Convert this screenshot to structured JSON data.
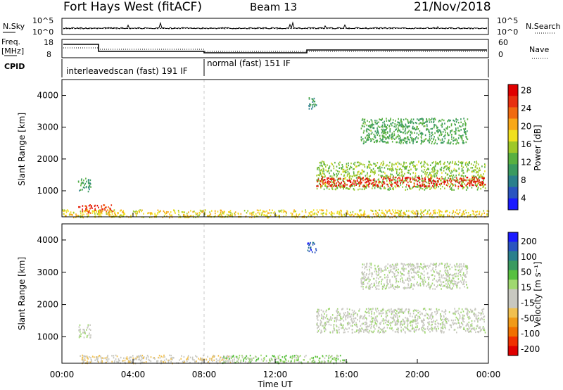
{
  "header": {
    "station": "Fort Hays West (fitACF)",
    "beam": "Beam 13",
    "date": "21/Nov/2018"
  },
  "top_panels": {
    "nsky_label": "N.Sky",
    "nsky_ticks": [
      "10^5",
      "10^0"
    ],
    "nsearch_label": "N.Search",
    "nsearch_ticks": [
      "10^5",
      "10^0"
    ],
    "freq_label_line1": "Freq.",
    "freq_label_line2": "[MHz]",
    "freq_ticks": [
      "18",
      "8"
    ],
    "nave_label": "Nave",
    "nave_ticks": [
      "60",
      "0"
    ],
    "cpid_label": "CPID",
    "cpid_segments": [
      "interleavedscan (fast) 191 IF",
      "normal (fast) 151 IF"
    ]
  },
  "chart_data": [
    {
      "type": "heatmap",
      "panel": "power",
      "ylabel": "Slant Range [km]",
      "yticks": [
        "4000",
        "3000",
        "2000",
        "1000"
      ],
      "ylim": [
        180,
        4500
      ],
      "xlim_hours": [
        0,
        24
      ],
      "colorbar": {
        "label": "Power [dB]",
        "ticks": [
          "28",
          "24",
          "20",
          "16",
          "12",
          "8",
          "4"
        ],
        "range": [
          0,
          30
        ],
        "colors": [
          "#1a1aff",
          "#2a54c0",
          "#2a7f8c",
          "#3a9a60",
          "#58b040",
          "#9ec828",
          "#f0e020",
          "#f8a818",
          "#f06a10",
          "#e83010",
          "#e00000"
        ]
      },
      "scatter_regions": [
        {
          "t0": 0.9,
          "t1": 1.6,
          "r0": 1000,
          "r1": 1450,
          "value": 10
        },
        {
          "t0": 0.9,
          "t1": 2.8,
          "r0": 320,
          "r1": 580,
          "value": 26
        },
        {
          "t0": 0.0,
          "t1": 24.0,
          "r0": 180,
          "r1": 420,
          "value": 18
        },
        {
          "t0": 14.3,
          "t1": 23.8,
          "r0": 1050,
          "r1": 1950,
          "value": 14
        },
        {
          "t0": 14.3,
          "t1": 23.8,
          "r0": 1150,
          "r1": 1450,
          "value": 27
        },
        {
          "t0": 16.8,
          "t1": 22.8,
          "r0": 2500,
          "r1": 3300,
          "value": 11
        },
        {
          "t0": 13.8,
          "t1": 14.3,
          "r0": 3600,
          "r1": 3950,
          "value": 9
        }
      ]
    },
    {
      "type": "heatmap",
      "panel": "velocity",
      "ylabel": "Slant Range [km]",
      "yticks": [
        "4000",
        "3000",
        "2000",
        "1000"
      ],
      "ylim": [
        180,
        4500
      ],
      "xlim_hours": [
        0,
        24
      ],
      "xticks": [
        "00:00",
        "04:00",
        "08:00",
        "12:00",
        "16:00",
        "20:00",
        "00:00"
      ],
      "xlabel": "Time UT",
      "colorbar": {
        "label": "Velocity [m s⁻¹]",
        "ticks": [
          "200",
          "100",
          "50",
          "15",
          "-15",
          "-50",
          "-100",
          "-200"
        ],
        "range": [
          -250,
          250
        ],
        "colors": [
          "#e00000",
          "#f03000",
          "#f07000",
          "#f09a18",
          "#f0c050",
          "#c8c8c0",
          "#c8c8c0",
          "#a0d870",
          "#58c040",
          "#3a9a60",
          "#2a7f8c",
          "#2a54c0",
          "#1a1aff"
        ]
      },
      "scatter_regions": [
        {
          "t0": 0.9,
          "t1": 1.6,
          "r0": 1000,
          "r1": 1400,
          "value": 0
        },
        {
          "t0": 1.0,
          "t1": 9.5,
          "r0": 200,
          "r1": 450,
          "value": -40
        },
        {
          "t0": 9.0,
          "t1": 16.0,
          "r0": 200,
          "r1": 450,
          "value": 40
        },
        {
          "t0": 14.3,
          "t1": 23.8,
          "r0": 1150,
          "r1": 1900,
          "value": 0
        },
        {
          "t0": 16.8,
          "t1": 22.8,
          "r0": 2500,
          "r1": 3300,
          "value": 0
        },
        {
          "t0": 13.8,
          "t1": 14.3,
          "r0": 3600,
          "r1": 3950,
          "value": 180
        }
      ]
    }
  ]
}
